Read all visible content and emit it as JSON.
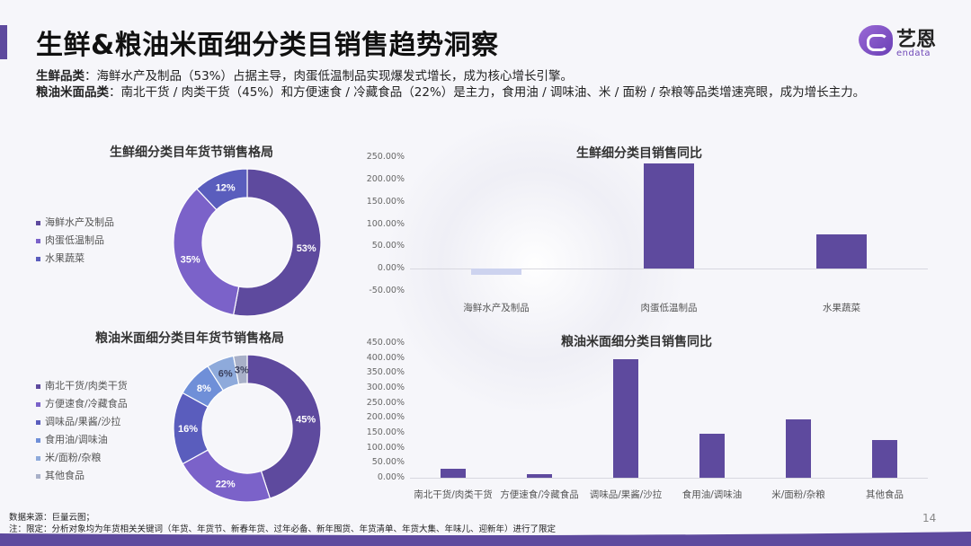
{
  "header": {
    "title": "生鲜&粮油米面细分类目销售趋势洞察",
    "logo_cn": "艺恩",
    "logo_en": "endata"
  },
  "summary": {
    "line1_label": "生鲜品类",
    "line1_text": "：海鲜水产及制品（53%）占据主导，肉蛋低温制品实现爆发式增长，成为核心增长引擎。",
    "line2_label": "粮油米面品类",
    "line2_text": "：南北干货 / 肉类干货（45%）和方便速食 / 冷藏食品（22%）是主力，食用油 / 调味油、米 / 面粉 / 杂粮等品类增速亮眼，成为增长主力。"
  },
  "colors": {
    "accent": "#5e4a9e",
    "bar": "#5e4a9e",
    "bar_negative": "#cdd3ef",
    "palette": [
      "#5e4a9e",
      "#7b62c9",
      "#5a5dbd",
      "#6f8fd8",
      "#8eaadb",
      "#a8b0c8"
    ]
  },
  "chart_data": [
    {
      "type": "pie",
      "subtype": "donut",
      "title": "生鲜细分类目年货节销售格局",
      "categories": [
        "海鲜水产及制品",
        "肉蛋低温制品",
        "水果蔬菜"
      ],
      "values": [
        53,
        35,
        12
      ],
      "labels": [
        "53%",
        "35%",
        "12%"
      ],
      "legend_position": "left"
    },
    {
      "type": "bar",
      "title": "生鲜细分类目销售同比",
      "categories": [
        "海鲜水产及制品",
        "肉蛋低温制品",
        "水果蔬菜"
      ],
      "values": [
        -14,
        236,
        76
      ],
      "ylim": [
        -50,
        250
      ],
      "yticks": [
        "250.00%",
        "200.00%",
        "150.00%",
        "100.00%",
        "50.00%",
        "0.00%",
        "-50.00%"
      ],
      "xlabel": "",
      "ylabel": "",
      "grid": false
    },
    {
      "type": "pie",
      "subtype": "donut",
      "title": "粮油米面细分类目年货节销售格局",
      "categories": [
        "南北干货/肉类干货",
        "方便速食/冷藏食品",
        "调味品/果酱/沙拉",
        "食用油/调味油",
        "米/面粉/杂粮",
        "其他食品"
      ],
      "values": [
        45,
        22,
        16,
        8,
        6,
        3
      ],
      "labels": [
        "45%",
        "22%",
        "16%",
        "8%",
        "6%",
        "3%"
      ],
      "legend_position": "left"
    },
    {
      "type": "bar",
      "title": "粮油米面细分类目销售同比",
      "categories": [
        "南北干货/肉类干货",
        "方便速食/冷藏食品",
        "调味品/果酱/沙拉",
        "食用油/调味油",
        "米/面粉/杂粮",
        "其他食品"
      ],
      "values": [
        30,
        13,
        395,
        147,
        195,
        126
      ],
      "ylim": [
        0,
        450
      ],
      "yticks": [
        "450.00%",
        "400.00%",
        "350.00%",
        "300.00%",
        "250.00%",
        "200.00%",
        "150.00%",
        "100.00%",
        "50.00%",
        "0.00%"
      ],
      "xlabel": "",
      "ylabel": "",
      "grid": false
    }
  ],
  "footer": {
    "source": "数据来源：巨量云图；",
    "note": "注：限定：分析对象均为年货相关关键词（年货、年货节、新春年货、过年必备、新年囤货、年货清单、年货大集、年味儿、迎新年）进行了限定",
    "page_number": "14"
  }
}
